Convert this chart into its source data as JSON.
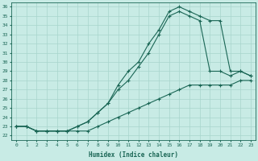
{
  "xlabel": "Humidex (Indice chaleur)",
  "ylabel": "",
  "bg_color": "#c8ebe5",
  "grid_color": "#a8d5cc",
  "line_color": "#1a6655",
  "xlim": [
    -0.5,
    23.5
  ],
  "ylim": [
    21.5,
    36.5
  ],
  "xticks": [
    0,
    1,
    2,
    3,
    4,
    5,
    6,
    7,
    8,
    9,
    10,
    11,
    12,
    13,
    14,
    15,
    16,
    17,
    18,
    19,
    20,
    21,
    22,
    23
  ],
  "yticks": [
    22,
    23,
    24,
    25,
    26,
    27,
    28,
    29,
    30,
    31,
    32,
    33,
    34,
    35,
    36
  ],
  "line1_x": [
    0,
    1,
    2,
    3,
    4,
    5,
    6,
    7,
    8,
    9,
    10,
    11,
    12,
    13,
    14,
    15,
    16,
    17,
    18,
    19,
    20,
    21,
    22,
    23
  ],
  "line1_y": [
    23.0,
    23.0,
    22.5,
    22.5,
    22.5,
    22.5,
    22.5,
    22.5,
    23.0,
    23.5,
    24.0,
    24.5,
    25.0,
    25.5,
    26.0,
    26.5,
    27.0,
    27.5,
    27.5,
    27.5,
    27.5,
    27.5,
    28.0,
    28.0
  ],
  "line2_x": [
    0,
    1,
    2,
    3,
    4,
    5,
    6,
    7,
    8,
    9,
    10,
    11,
    12,
    13,
    14,
    15,
    16,
    17,
    18,
    19,
    20,
    21,
    22,
    23
  ],
  "line2_y": [
    23.0,
    23.0,
    22.5,
    22.5,
    22.5,
    22.5,
    23.0,
    23.5,
    24.5,
    25.5,
    27.0,
    28.0,
    29.5,
    31.0,
    33.0,
    35.0,
    35.5,
    35.0,
    34.5,
    29.0,
    29.0,
    28.5,
    29.0,
    28.5
  ],
  "line3_x": [
    0,
    1,
    2,
    3,
    4,
    5,
    6,
    7,
    8,
    9,
    10,
    11,
    12,
    13,
    14,
    15,
    16,
    17,
    18,
    19,
    20,
    21,
    22,
    23
  ],
  "line3_y": [
    23.0,
    23.0,
    22.5,
    22.5,
    22.5,
    22.5,
    23.0,
    23.5,
    24.5,
    25.5,
    27.5,
    29.0,
    30.0,
    32.0,
    33.5,
    35.5,
    36.0,
    35.5,
    35.0,
    34.5,
    34.5,
    29.0,
    29.0,
    28.5
  ]
}
